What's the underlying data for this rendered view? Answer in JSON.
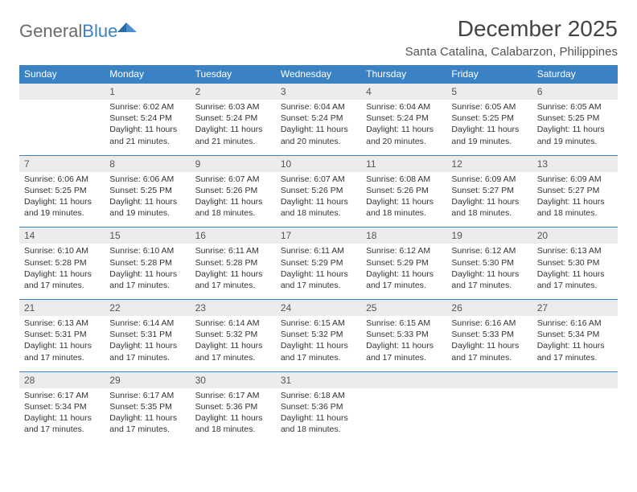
{
  "brand": {
    "part1": "General",
    "part2": "Blue"
  },
  "title": "December 2025",
  "location": "Santa Catalina, Calabarzon, Philippines",
  "colors": {
    "header_bg": "#3b82c4",
    "header_text": "#ffffff",
    "date_bg": "#ececec",
    "row_border": "#3b82c4",
    "body_text": "#333333",
    "logo_gray": "#6a6a6a",
    "logo_blue": "#3b7fc4"
  },
  "typography": {
    "title_fontsize": 28,
    "location_fontsize": 15,
    "header_fontsize": 12,
    "date_fontsize": 12,
    "detail_fontsize": 10.5
  },
  "weekdays": [
    "Sunday",
    "Monday",
    "Tuesday",
    "Wednesday",
    "Thursday",
    "Friday",
    "Saturday"
  ],
  "weeks": [
    [
      null,
      {
        "date": "1",
        "sunrise": "6:02 AM",
        "sunset": "5:24 PM",
        "daylight": "11 hours and 21 minutes."
      },
      {
        "date": "2",
        "sunrise": "6:03 AM",
        "sunset": "5:24 PM",
        "daylight": "11 hours and 21 minutes."
      },
      {
        "date": "3",
        "sunrise": "6:04 AM",
        "sunset": "5:24 PM",
        "daylight": "11 hours and 20 minutes."
      },
      {
        "date": "4",
        "sunrise": "6:04 AM",
        "sunset": "5:24 PM",
        "daylight": "11 hours and 20 minutes."
      },
      {
        "date": "5",
        "sunrise": "6:05 AM",
        "sunset": "5:25 PM",
        "daylight": "11 hours and 19 minutes."
      },
      {
        "date": "6",
        "sunrise": "6:05 AM",
        "sunset": "5:25 PM",
        "daylight": "11 hours and 19 minutes."
      }
    ],
    [
      {
        "date": "7",
        "sunrise": "6:06 AM",
        "sunset": "5:25 PM",
        "daylight": "11 hours and 19 minutes."
      },
      {
        "date": "8",
        "sunrise": "6:06 AM",
        "sunset": "5:25 PM",
        "daylight": "11 hours and 19 minutes."
      },
      {
        "date": "9",
        "sunrise": "6:07 AM",
        "sunset": "5:26 PM",
        "daylight": "11 hours and 18 minutes."
      },
      {
        "date": "10",
        "sunrise": "6:07 AM",
        "sunset": "5:26 PM",
        "daylight": "11 hours and 18 minutes."
      },
      {
        "date": "11",
        "sunrise": "6:08 AM",
        "sunset": "5:26 PM",
        "daylight": "11 hours and 18 minutes."
      },
      {
        "date": "12",
        "sunrise": "6:09 AM",
        "sunset": "5:27 PM",
        "daylight": "11 hours and 18 minutes."
      },
      {
        "date": "13",
        "sunrise": "6:09 AM",
        "sunset": "5:27 PM",
        "daylight": "11 hours and 18 minutes."
      }
    ],
    [
      {
        "date": "14",
        "sunrise": "6:10 AM",
        "sunset": "5:28 PM",
        "daylight": "11 hours and 17 minutes."
      },
      {
        "date": "15",
        "sunrise": "6:10 AM",
        "sunset": "5:28 PM",
        "daylight": "11 hours and 17 minutes."
      },
      {
        "date": "16",
        "sunrise": "6:11 AM",
        "sunset": "5:28 PM",
        "daylight": "11 hours and 17 minutes."
      },
      {
        "date": "17",
        "sunrise": "6:11 AM",
        "sunset": "5:29 PM",
        "daylight": "11 hours and 17 minutes."
      },
      {
        "date": "18",
        "sunrise": "6:12 AM",
        "sunset": "5:29 PM",
        "daylight": "11 hours and 17 minutes."
      },
      {
        "date": "19",
        "sunrise": "6:12 AM",
        "sunset": "5:30 PM",
        "daylight": "11 hours and 17 minutes."
      },
      {
        "date": "20",
        "sunrise": "6:13 AM",
        "sunset": "5:30 PM",
        "daylight": "11 hours and 17 minutes."
      }
    ],
    [
      {
        "date": "21",
        "sunrise": "6:13 AM",
        "sunset": "5:31 PM",
        "daylight": "11 hours and 17 minutes."
      },
      {
        "date": "22",
        "sunrise": "6:14 AM",
        "sunset": "5:31 PM",
        "daylight": "11 hours and 17 minutes."
      },
      {
        "date": "23",
        "sunrise": "6:14 AM",
        "sunset": "5:32 PM",
        "daylight": "11 hours and 17 minutes."
      },
      {
        "date": "24",
        "sunrise": "6:15 AM",
        "sunset": "5:32 PM",
        "daylight": "11 hours and 17 minutes."
      },
      {
        "date": "25",
        "sunrise": "6:15 AM",
        "sunset": "5:33 PM",
        "daylight": "11 hours and 17 minutes."
      },
      {
        "date": "26",
        "sunrise": "6:16 AM",
        "sunset": "5:33 PM",
        "daylight": "11 hours and 17 minutes."
      },
      {
        "date": "27",
        "sunrise": "6:16 AM",
        "sunset": "5:34 PM",
        "daylight": "11 hours and 17 minutes."
      }
    ],
    [
      {
        "date": "28",
        "sunrise": "6:17 AM",
        "sunset": "5:34 PM",
        "daylight": "11 hours and 17 minutes."
      },
      {
        "date": "29",
        "sunrise": "6:17 AM",
        "sunset": "5:35 PM",
        "daylight": "11 hours and 17 minutes."
      },
      {
        "date": "30",
        "sunrise": "6:17 AM",
        "sunset": "5:36 PM",
        "daylight": "11 hours and 18 minutes."
      },
      {
        "date": "31",
        "sunrise": "6:18 AM",
        "sunset": "5:36 PM",
        "daylight": "11 hours and 18 minutes."
      },
      null,
      null,
      null
    ]
  ],
  "labels": {
    "sunrise": "Sunrise:",
    "sunset": "Sunset:",
    "daylight": "Daylight:"
  }
}
